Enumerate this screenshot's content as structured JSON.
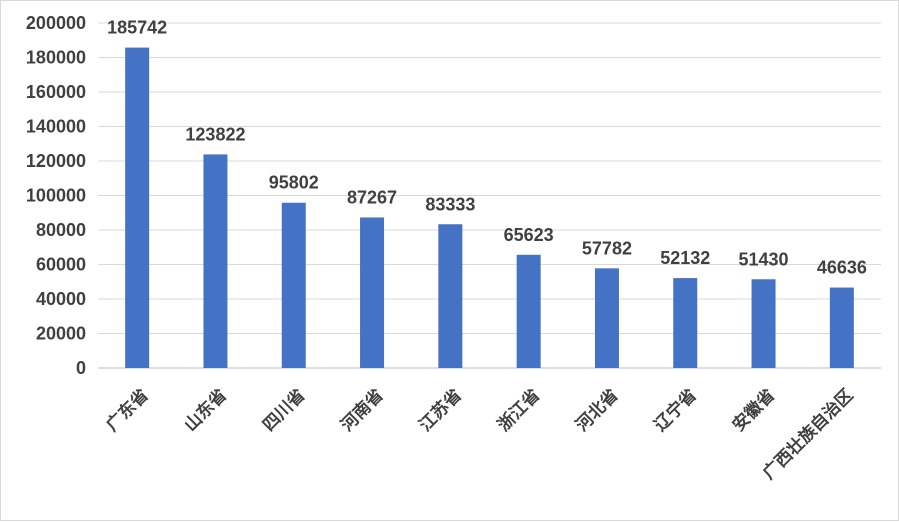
{
  "chart_data": {
    "type": "bar",
    "categories": [
      "广东省",
      "山东省",
      "四川省",
      "河南省",
      "江苏省",
      "浙江省",
      "河北省",
      "辽宁省",
      "安徽省",
      "广西壮族自治区"
    ],
    "values": [
      185742,
      123822,
      95802,
      87267,
      83333,
      65623,
      57782,
      52132,
      51430,
      46636
    ],
    "title": "",
    "xlabel": "",
    "ylabel": "",
    "ylim": [
      0,
      200000
    ],
    "yticks": [
      0,
      20000,
      40000,
      60000,
      80000,
      100000,
      120000,
      140000,
      160000,
      180000,
      200000
    ],
    "grid": true,
    "legend": "none",
    "bar_color": "#4472c4",
    "data_labels": true
  }
}
